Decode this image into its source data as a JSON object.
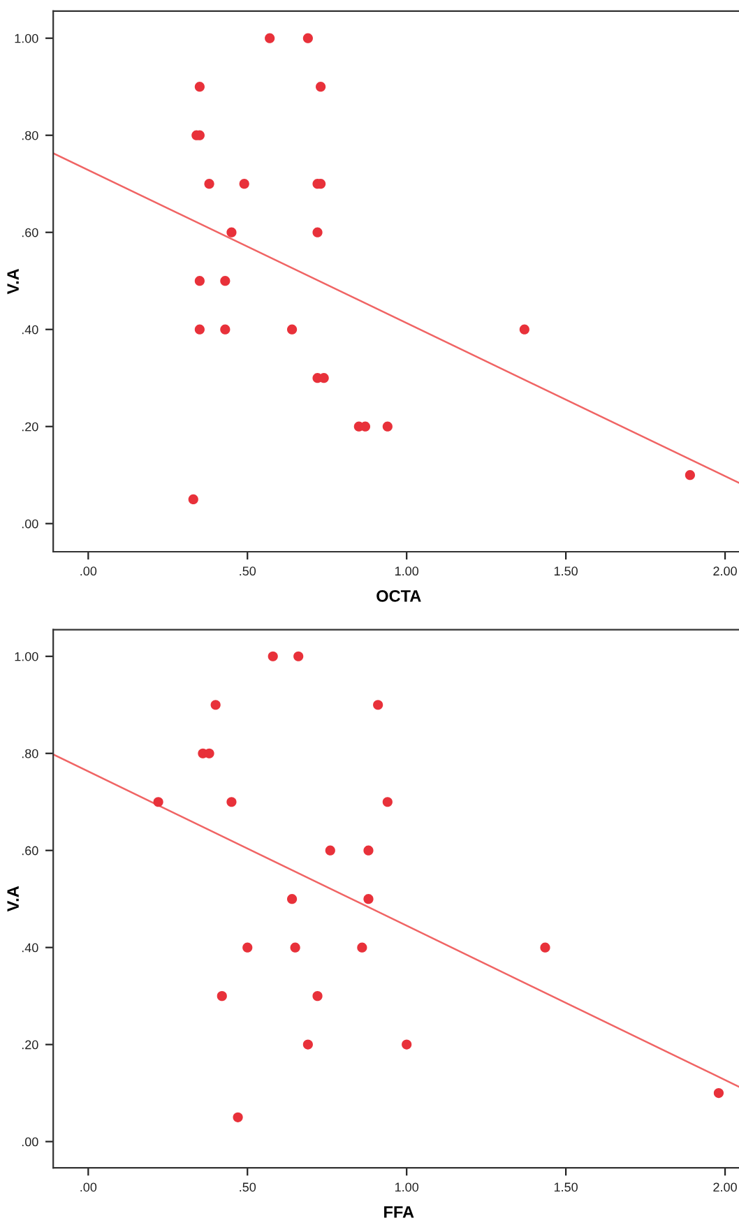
{
  "chart_data": [
    {
      "type": "scatter",
      "xlabel": "OCTA",
      "ylabel": "V.A",
      "grid": false,
      "xlim": [
        -0.11,
        2.06
      ],
      "ylim": [
        -0.058,
        1.056
      ],
      "xticks": [
        {
          "value": 0,
          "label": ".00"
        },
        {
          "value": 0.5,
          "label": ".50"
        },
        {
          "value": 1,
          "label": "1.00"
        },
        {
          "value": 1.5,
          "label": "1.50"
        },
        {
          "value": 2,
          "label": "2.00"
        }
      ],
      "yticks": [
        {
          "value": 0,
          "label": ".00"
        },
        {
          "value": 0.2,
          "label": ".20"
        },
        {
          "value": 0.4,
          "label": ".40"
        },
        {
          "value": 0.6,
          "label": ".60"
        },
        {
          "value": 0.8,
          "label": ".80"
        },
        {
          "value": 1,
          "label": "1.00"
        }
      ],
      "series": [
        {
          "type": "scatter",
          "marker": "circle",
          "color": "#e8313a",
          "x": [
            0.57,
            0.69,
            0.35,
            0.73,
            0.34,
            0.35,
            0.38,
            0.49,
            0.72,
            0.73,
            0.45,
            0.72,
            0.35,
            0.43,
            0.35,
            0.43,
            0.64,
            0.72,
            0.74,
            0.85,
            0.87,
            0.94,
            0.33,
            1.37,
            1.89
          ],
          "values": [
            1.0,
            1.0,
            0.9,
            0.9,
            0.8,
            0.8,
            0.7,
            0.7,
            0.7,
            0.7,
            0.6,
            0.6,
            0.5,
            0.5,
            0.4,
            0.4,
            0.4,
            0.3,
            0.3,
            0.2,
            0.2,
            0.2,
            0.05,
            0.4,
            0.1
          ]
        },
        {
          "type": "line",
          "color": "#f06464",
          "x": [
            -0.11,
            2.05
          ],
          "values": [
            0.763,
            0.082
          ]
        }
      ]
    },
    {
      "type": "scatter",
      "xlabel": "FFA",
      "ylabel": "V.A",
      "grid": false,
      "xlim": [
        -0.11,
        2.06
      ],
      "ylim": [
        -0.054,
        1.055
      ],
      "xticks": [
        {
          "value": 0,
          "label": ".00"
        },
        {
          "value": 0.5,
          "label": ".50"
        },
        {
          "value": 1,
          "label": "1.00"
        },
        {
          "value": 1.5,
          "label": "1.50"
        },
        {
          "value": 2,
          "label": "2.00"
        }
      ],
      "yticks": [
        {
          "value": 0,
          "label": ".00"
        },
        {
          "value": 0.2,
          "label": ".20"
        },
        {
          "value": 0.4,
          "label": ".40"
        },
        {
          "value": 0.6,
          "label": ".60"
        },
        {
          "value": 0.8,
          "label": ".80"
        },
        {
          "value": 1,
          "label": "1.00"
        }
      ],
      "series": [
        {
          "type": "scatter",
          "marker": "circle",
          "color": "#e8313a",
          "x": [
            0.58,
            0.66,
            0.4,
            0.91,
            0.36,
            0.38,
            0.22,
            0.45,
            0.94,
            0.76,
            0.88,
            0.64,
            0.88,
            0.5,
            0.65,
            0.86,
            0.42,
            0.72,
            0.69,
            1.0,
            0.47,
            1.435,
            1.98
          ],
          "values": [
            1.0,
            1.0,
            0.9,
            0.9,
            0.8,
            0.8,
            0.7,
            0.7,
            0.7,
            0.6,
            0.6,
            0.5,
            0.5,
            0.4,
            0.4,
            0.4,
            0.3,
            0.3,
            0.2,
            0.2,
            0.05,
            0.4,
            0.1
          ]
        },
        {
          "type": "line",
          "color": "#f06464",
          "x": [
            -0.11,
            2.05
          ],
          "values": [
            0.798,
            0.111
          ]
        }
      ]
    }
  ]
}
